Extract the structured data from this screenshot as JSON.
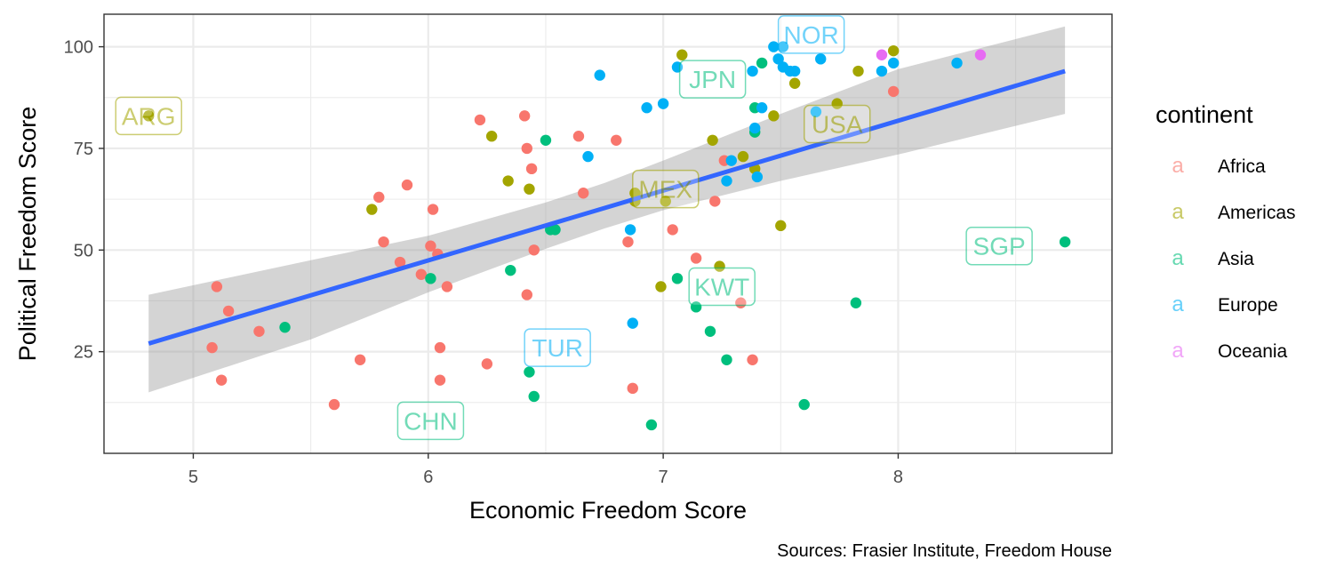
{
  "chart_data": {
    "type": "scatter",
    "title": "",
    "xlabel": "Economic Freedom Score",
    "ylabel": "Political Freedom Score",
    "caption": "Sources: Frasier Institute, Freedom House",
    "xlim": [
      4.62,
      8.91
    ],
    "ylim": [
      0,
      108
    ],
    "x_ticks": [
      5,
      6,
      7,
      8
    ],
    "y_ticks": [
      25,
      50,
      75,
      100
    ],
    "grid": true,
    "legend": {
      "title": "continent",
      "position": "right",
      "entries": [
        {
          "name": "Africa",
          "color": "#F8766D"
        },
        {
          "name": "Americas",
          "color": "#A3A500"
        },
        {
          "name": "Asia",
          "color": "#00BF7D"
        },
        {
          "name": "Europe",
          "color": "#00B0F6"
        },
        {
          "name": "Oceania",
          "color": "#E76BF3"
        }
      ]
    },
    "series": [
      {
        "name": "Africa",
        "color": "#F8766D",
        "points": [
          [
            5.1,
            41
          ],
          [
            5.15,
            35
          ],
          [
            5.08,
            26
          ],
          [
            5.12,
            18
          ],
          [
            5.28,
            30
          ],
          [
            5.6,
            12
          ],
          [
            5.71,
            23
          ],
          [
            5.79,
            63
          ],
          [
            5.81,
            52
          ],
          [
            5.88,
            47
          ],
          [
            5.91,
            66
          ],
          [
            5.97,
            44
          ],
          [
            6.01,
            51
          ],
          [
            6.02,
            60
          ],
          [
            6.04,
            49
          ],
          [
            6.05,
            26
          ],
          [
            6.05,
            18
          ],
          [
            6.08,
            41
          ],
          [
            6.22,
            82
          ],
          [
            6.25,
            22
          ],
          [
            6.41,
            83
          ],
          [
            6.42,
            75
          ],
          [
            6.42,
            39
          ],
          [
            6.44,
            70
          ],
          [
            6.45,
            50
          ],
          [
            6.64,
            78
          ],
          [
            6.66,
            64
          ],
          [
            6.8,
            77
          ],
          [
            6.85,
            52
          ],
          [
            6.87,
            16
          ],
          [
            7.04,
            55
          ],
          [
            7.14,
            48
          ],
          [
            7.22,
            62
          ],
          [
            7.26,
            72
          ],
          [
            7.33,
            37
          ],
          [
            7.38,
            23
          ],
          [
            7.98,
            89
          ]
        ]
      },
      {
        "name": "Americas",
        "color": "#A3A500",
        "points": [
          [
            4.81,
            83
          ],
          [
            5.76,
            60
          ],
          [
            6.27,
            78
          ],
          [
            6.34,
            67
          ],
          [
            6.43,
            65
          ],
          [
            6.88,
            64
          ],
          [
            6.88,
            62
          ],
          [
            6.99,
            41
          ],
          [
            7.01,
            62
          ],
          [
            7.08,
            98
          ],
          [
            7.21,
            77
          ],
          [
            7.24,
            46
          ],
          [
            7.34,
            73
          ],
          [
            7.39,
            70
          ],
          [
            7.47,
            83
          ],
          [
            7.5,
            56
          ],
          [
            7.56,
            91
          ],
          [
            7.74,
            86
          ],
          [
            7.83,
            94
          ],
          [
            7.98,
            99
          ]
        ]
      },
      {
        "name": "Asia",
        "color": "#00BF7D",
        "points": [
          [
            5.39,
            31
          ],
          [
            6.01,
            43
          ],
          [
            6.35,
            45
          ],
          [
            6.43,
            20
          ],
          [
            6.45,
            14
          ],
          [
            6.5,
            77
          ],
          [
            6.52,
            55
          ],
          [
            6.54,
            55
          ],
          [
            6.95,
            7
          ],
          [
            7.06,
            43
          ],
          [
            7.14,
            36
          ],
          [
            7.2,
            30
          ],
          [
            7.27,
            23
          ],
          [
            7.39,
            85
          ],
          [
            7.39,
            79
          ],
          [
            7.42,
            96
          ],
          [
            7.6,
            12
          ],
          [
            7.82,
            37
          ],
          [
            8.71,
            52
          ]
        ]
      },
      {
        "name": "Europe",
        "color": "#00B0F6",
        "points": [
          [
            6.68,
            73
          ],
          [
            6.73,
            93
          ],
          [
            6.86,
            55
          ],
          [
            6.87,
            32
          ],
          [
            6.93,
            85
          ],
          [
            7.0,
            86
          ],
          [
            7.06,
            95
          ],
          [
            7.29,
            72
          ],
          [
            7.27,
            67
          ],
          [
            7.38,
            94
          ],
          [
            7.39,
            80
          ],
          [
            7.4,
            68
          ],
          [
            7.42,
            85
          ],
          [
            7.47,
            100
          ],
          [
            7.49,
            97
          ],
          [
            7.51,
            100
          ],
          [
            7.51,
            95
          ],
          [
            7.54,
            94
          ],
          [
            7.56,
            94
          ],
          [
            7.65,
            84
          ],
          [
            7.67,
            97
          ],
          [
            7.93,
            94
          ],
          [
            7.98,
            96
          ],
          [
            8.25,
            96
          ]
        ]
      },
      {
        "name": "Oceania",
        "color": "#E76BF3",
        "points": [
          [
            7.93,
            98
          ],
          [
            8.35,
            98
          ]
        ]
      }
    ],
    "regression": {
      "method": "lm",
      "line": [
        [
          4.81,
          27.0
        ],
        [
          8.71,
          94.0
        ]
      ],
      "band": [
        [
          4.81,
          15.0,
          39.0
        ],
        [
          5.5,
          28.0,
          47.5
        ],
        [
          6.0,
          39.6,
          53.5
        ],
        [
          6.5,
          50.3,
          61.7
        ],
        [
          6.75,
          55.3,
          66.5
        ],
        [
          7.0,
          59.8,
          72.0
        ],
        [
          7.5,
          67.0,
          83.5
        ],
        [
          8.0,
          73.5,
          94.5
        ],
        [
          8.71,
          83.5,
          105.0
        ]
      ]
    },
    "annotations": [
      {
        "label": "ARG",
        "series": "Americas",
        "x": 4.81,
        "y": 83
      },
      {
        "label": "CHN",
        "series": "Asia",
        "x": 6.01,
        "y": 8
      },
      {
        "label": "JPN",
        "series": "Asia",
        "x": 7.21,
        "y": 92
      },
      {
        "label": "KWT",
        "series": "Asia",
        "x": 7.25,
        "y": 41
      },
      {
        "label": "MEX",
        "series": "Americas",
        "x": 7.01,
        "y": 65
      },
      {
        "label": "NOR",
        "series": "Europe",
        "x": 7.63,
        "y": 103
      },
      {
        "label": "SGP",
        "series": "Asia",
        "x": 8.43,
        "y": 51
      },
      {
        "label": "TUR",
        "series": "Europe",
        "x": 6.55,
        "y": 26
      },
      {
        "label": "USA",
        "series": "Americas",
        "x": 7.74,
        "y": 81
      }
    ]
  }
}
